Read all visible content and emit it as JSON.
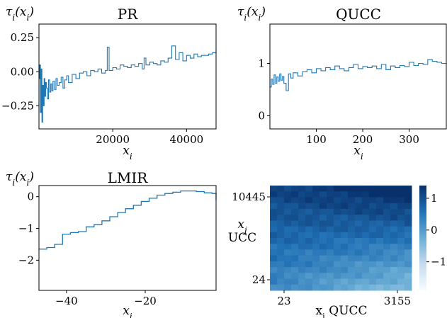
{
  "colors": {
    "line": "#1f77b4",
    "axis": "#000000",
    "heat_low": "#f7fbff",
    "heat_high": "#08306b"
  },
  "chart_data": [
    {
      "id": "pr",
      "type": "line",
      "title": "PR",
      "xlabel": "x_i",
      "ylabel": "τ_i(x_i)",
      "xlim": [
        0,
        48000
      ],
      "ylim": [
        -0.42,
        0.35
      ],
      "xticks": [
        20000,
        40000
      ],
      "xtick_labels": [
        "20000",
        "40000"
      ],
      "yticks": [
        -0.25,
        0.0,
        0.25
      ],
      "ytick_labels": [
        "−0.25",
        "0.00",
        "0.25"
      ],
      "series": [
        {
          "x": [
            0,
            200,
            400,
            600,
            800,
            1000,
            1200,
            1400,
            1600,
            1800,
            2000,
            2300,
            2600,
            2900,
            3200,
            3500,
            3800,
            4200,
            4600,
            5000,
            5500,
            6000,
            6500,
            7000,
            7500,
            8000,
            9000,
            10000,
            11000,
            12000,
            13000,
            14000,
            15000,
            16000,
            17000,
            18000,
            18500,
            19000,
            20000,
            21000,
            22000,
            23000,
            24000,
            25000,
            26000,
            27000,
            28000,
            28500,
            29000,
            30000,
            31000,
            32000,
            33000,
            34000,
            35000,
            36000,
            37000,
            38000,
            39000,
            40000,
            41000,
            42000,
            43000,
            44000,
            45000,
            46000,
            47000,
            48000
          ],
          "y": [
            -0.05,
            0.05,
            -0.3,
            0.02,
            -0.37,
            -0.1,
            -0.25,
            -0.05,
            -0.18,
            -0.08,
            -0.12,
            -0.2,
            -0.06,
            -0.15,
            -0.09,
            -0.14,
            -0.07,
            -0.13,
            -0.05,
            -0.1,
            -0.08,
            -0.04,
            -0.12,
            -0.06,
            -0.03,
            -0.08,
            -0.02,
            -0.05,
            -0.01,
            0.0,
            -0.03,
            0.01,
            0.0,
            0.02,
            -0.01,
            0.01,
            0.18,
            0.01,
            0.03,
            0.02,
            0.05,
            0.04,
            0.03,
            0.05,
            0.04,
            0.06,
            0.02,
            0.1,
            0.05,
            0.07,
            0.06,
            0.05,
            0.08,
            0.07,
            0.1,
            0.19,
            0.09,
            0.14,
            0.08,
            0.12,
            0.1,
            0.13,
            0.11,
            0.12,
            0.12,
            0.13,
            0.14,
            0.16
          ]
        }
      ]
    },
    {
      "id": "qucc",
      "type": "line",
      "title": "QUCC",
      "xlabel": "x_i",
      "ylabel": "τ_i(x_i)",
      "xlim": [
        0,
        380
      ],
      "ylim": [
        -0.25,
        1.75
      ],
      "xticks": [
        100,
        200,
        300
      ],
      "xtick_labels": [
        "100",
        "200",
        "300"
      ],
      "yticks": [
        0,
        1
      ],
      "ytick_labels": [
        "0",
        "1"
      ],
      "series": [
        {
          "x": [
            0,
            3,
            6,
            9,
            12,
            15,
            18,
            21,
            24,
            27,
            30,
            35,
            40,
            45,
            50,
            60,
            70,
            80,
            90,
            100,
            110,
            120,
            130,
            140,
            150,
            160,
            170,
            180,
            190,
            200,
            210,
            220,
            230,
            240,
            250,
            260,
            270,
            280,
            290,
            300,
            310,
            320,
            330,
            340,
            350,
            360,
            370,
            380
          ],
          "y": [
            0.55,
            0.7,
            0.6,
            0.78,
            0.62,
            0.74,
            0.66,
            0.8,
            0.68,
            0.75,
            0.62,
            0.48,
            0.8,
            0.72,
            0.82,
            0.76,
            0.84,
            0.88,
            0.82,
            0.9,
            0.86,
            0.92,
            0.88,
            0.95,
            0.9,
            0.86,
            0.92,
            0.98,
            0.9,
            0.94,
            0.92,
            0.95,
            0.9,
            0.98,
            0.88,
            0.95,
            0.92,
            0.96,
            0.94,
            1.02,
            0.96,
            1.0,
            0.98,
            1.07,
            1.04,
            1.02,
            1.0,
            0.97
          ]
        }
      ]
    },
    {
      "id": "lmir",
      "type": "line",
      "title": "LMIR",
      "xlabel": "x_i",
      "ylabel": "τ_i(x_i)",
      "xlim": [
        -47,
        -2
      ],
      "ylim": [
        -2.95,
        0.35
      ],
      "xticks": [
        -40,
        -20
      ],
      "xtick_labels": [
        "−40",
        "−20"
      ],
      "yticks": [
        -2,
        -1,
        0
      ],
      "ytick_labels": [
        "−2",
        "−1",
        "0"
      ],
      "series": [
        {
          "x": [
            -47,
            -45,
            -43,
            -41,
            -39,
            -37,
            -35,
            -33,
            -31,
            -29,
            -27,
            -25,
            -23,
            -21,
            -19,
            -17,
            -15,
            -13,
            -11,
            -9,
            -7,
            -5,
            -3,
            -2
          ],
          "y": [
            -1.65,
            -1.6,
            -1.5,
            -1.18,
            -1.13,
            -1.1,
            -0.95,
            -0.88,
            -0.76,
            -0.63,
            -0.5,
            -0.38,
            -0.27,
            -0.15,
            -0.05,
            0.05,
            0.1,
            0.14,
            0.18,
            0.18,
            0.16,
            0.12,
            0.1,
            -0.1
          ]
        }
      ]
    },
    {
      "id": "heat",
      "type": "heatmap",
      "xlabel": "x_i QUCC",
      "ylabel_top": "x_j",
      "ylabel_bottom": "UCC",
      "xtick_labels": [
        "23",
        "3155"
      ],
      "ytick_labels": [
        "10445",
        "24"
      ],
      "colorbar_ticks": [
        1,
        0,
        -1
      ],
      "colorbar_tick_labels": [
        "1",
        "0",
        "−1"
      ],
      "zlim": [
        -1.9,
        1.4
      ],
      "grid_rows": 18,
      "grid_cols": 20
    }
  ]
}
